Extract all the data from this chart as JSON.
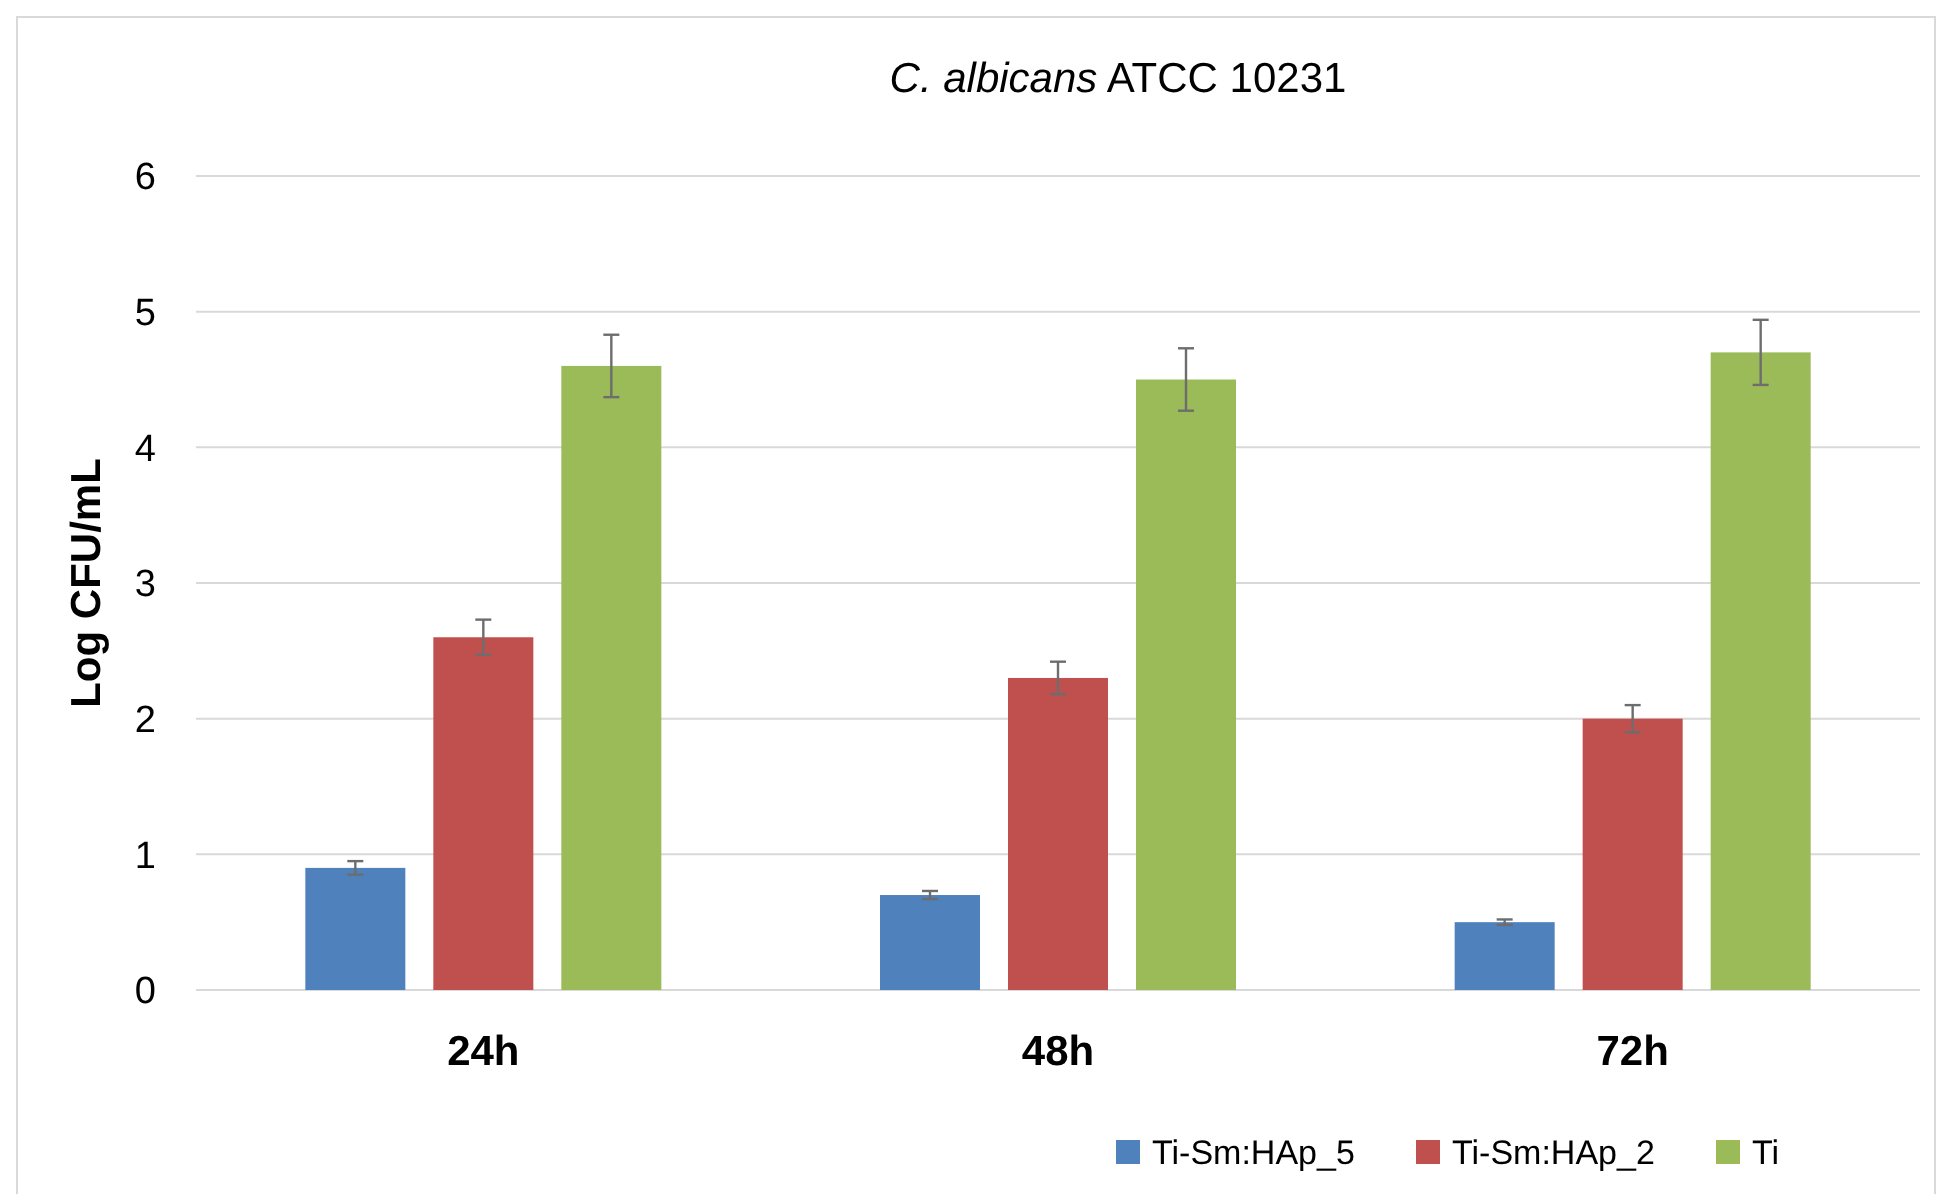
{
  "chart_data": {
    "type": "bar",
    "title": "C. albicans ATCC 10231",
    "ylabel": "Log CFU/mL",
    "categories": [
      "24h",
      "48h",
      "72h"
    ],
    "series": [
      {
        "name": "Ti-Sm:HAp_5",
        "color": "#4f81bd",
        "values": [
          0.9,
          0.7,
          0.5
        ],
        "errors": [
          0.05,
          0.03,
          0.02
        ]
      },
      {
        "name": "Ti-Sm:HAp_2",
        "color": "#c0504d",
        "values": [
          2.6,
          2.3,
          2.0
        ],
        "errors": [
          0.13,
          0.12,
          0.1
        ]
      },
      {
        "name": "Ti",
        "color": "#9bbb59",
        "values": [
          4.6,
          4.5,
          4.7
        ],
        "errors": [
          0.23,
          0.23,
          0.24
        ]
      }
    ],
    "ylim": [
      0,
      6
    ],
    "yticks": [
      0,
      1,
      2,
      3,
      4,
      5,
      6
    ],
    "grid": "y",
    "legend": "bottom right"
  }
}
